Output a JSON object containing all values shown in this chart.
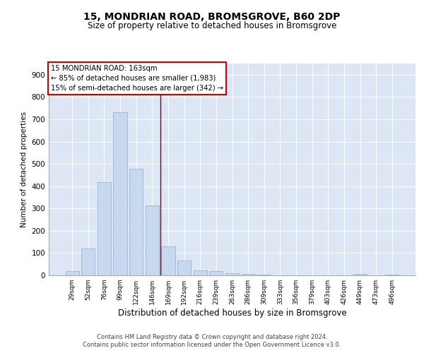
{
  "title_line1": "15, MONDRIAN ROAD, BROMSGROVE, B60 2DP",
  "title_line2": "Size of property relative to detached houses in Bromsgrove",
  "xlabel": "Distribution of detached houses by size in Bromsgrove",
  "ylabel": "Number of detached properties",
  "bar_color": "#c8d8ee",
  "bar_edgecolor": "#9ab4d8",
  "vline_color": "#8b0000",
  "vline_x": 5.5,
  "categories": [
    "29sqm",
    "52sqm",
    "76sqm",
    "99sqm",
    "122sqm",
    "146sqm",
    "169sqm",
    "192sqm",
    "216sqm",
    "239sqm",
    "263sqm",
    "286sqm",
    "309sqm",
    "333sqm",
    "356sqm",
    "379sqm",
    "403sqm",
    "426sqm",
    "449sqm",
    "473sqm",
    "496sqm"
  ],
  "values": [
    18,
    120,
    418,
    730,
    478,
    315,
    130,
    65,
    22,
    18,
    10,
    5,
    2,
    1,
    1,
    0,
    0,
    0,
    5,
    0,
    2
  ],
  "annotation_text": "15 MONDRIAN ROAD: 163sqm\n← 85% of detached houses are smaller (1,983)\n15% of semi-detached houses are larger (342) →",
  "annotation_box_color": "#ffffff",
  "annotation_box_edgecolor": "#cc0000",
  "ylim": [
    0,
    950
  ],
  "yticks": [
    0,
    100,
    200,
    300,
    400,
    500,
    600,
    700,
    800,
    900
  ],
  "background_color": "#dce6f5",
  "footer_line1": "Contains HM Land Registry data © Crown copyright and database right 2024.",
  "footer_line2": "Contains public sector information licensed under the Open Government Licence v3.0."
}
